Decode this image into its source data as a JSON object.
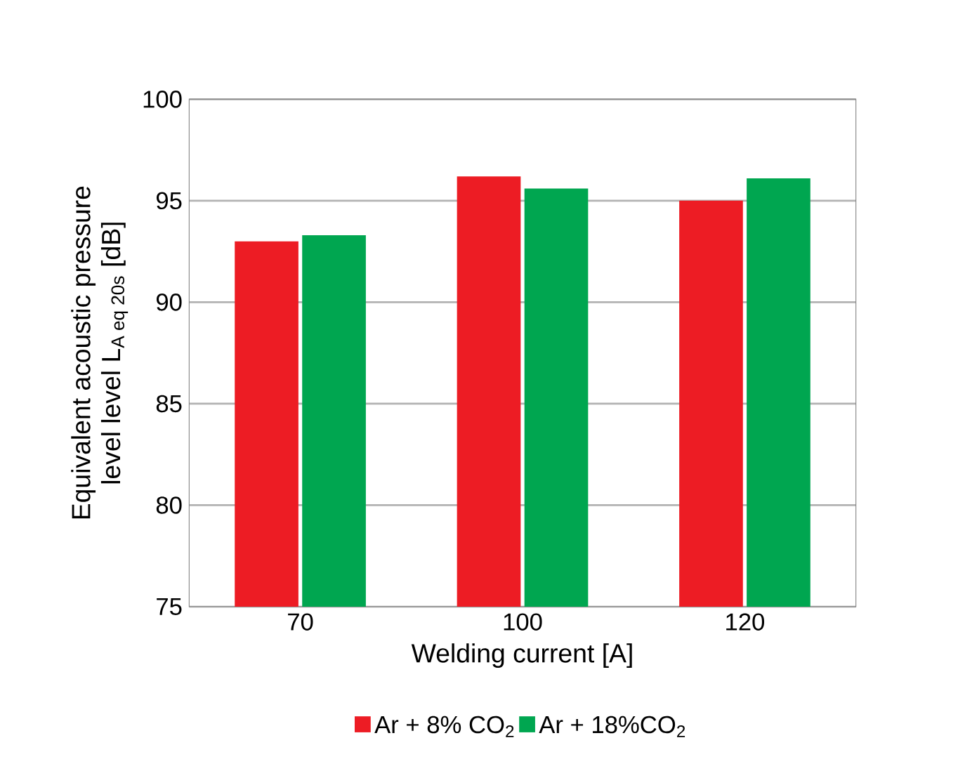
{
  "chart_data": {
    "type": "bar",
    "xlabel": "Welding current [A]",
    "ylabel": "\\begin{array}{c}\\text{Equivalent acoustic pressure}\\\\ \\text{level level }\\text{L}_{\\text{A eq 20s}}\\text{ [dB]}\\end{array}",
    "categories": [
      "70",
      "100",
      "120"
    ],
    "series": [
      {
        "name": "Ar + 8% CO$_{2}$",
        "color": "#ed1c24",
        "values": [
          93,
          96.2,
          95
        ]
      },
      {
        "name": "Ar + 18%CO$_{2}$",
        "color": "#00a650",
        "values": [
          93.3,
          95.6,
          96.1
        ]
      }
    ],
    "ylim": [
      75,
      100
    ],
    "yticks": [
      75,
      80,
      85,
      90,
      95,
      100
    ],
    "grid": "y",
    "legend": "bottom"
  }
}
